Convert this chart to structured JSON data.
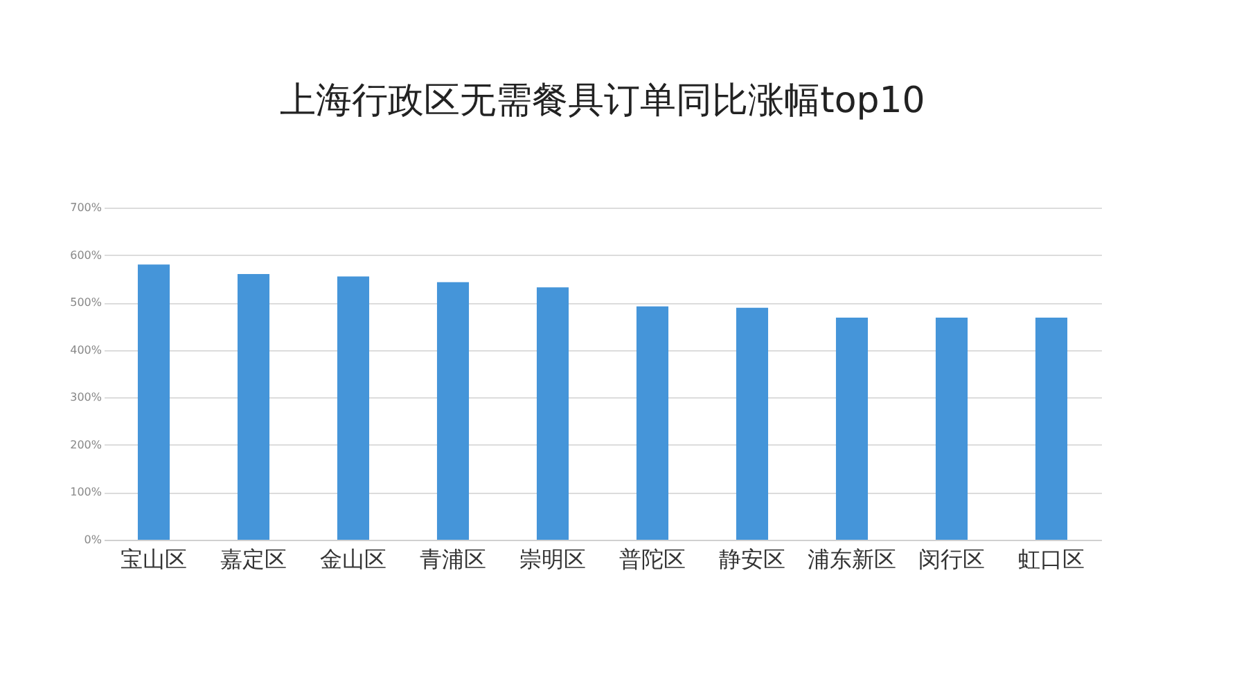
{
  "chart_data": {
    "type": "bar",
    "title": "上海行政区无需餐具订单同比涨幅top10",
    "categories": [
      "宝山区",
      "嘉定区",
      "金山区",
      "青浦区",
      "崇明区",
      "普陀区",
      "静安区",
      "浦东新区",
      "闵行区",
      "虹口区"
    ],
    "values": [
      580,
      560,
      555,
      543,
      532,
      492,
      489,
      468,
      468,
      468
    ],
    "color": "#4595d9",
    "ylim": [
      0,
      700
    ],
    "yticks": [
      {
        "value": 0,
        "label": "0%"
      },
      {
        "value": 100,
        "label": "100%"
      },
      {
        "value": 200,
        "label": "200%"
      },
      {
        "value": 300,
        "label": "300%"
      },
      {
        "value": 400,
        "label": "400%"
      },
      {
        "value": 500,
        "label": "500%"
      },
      {
        "value": 600,
        "label": "600%"
      },
      {
        "value": 700,
        "label": "700%"
      }
    ],
    "grid": "y"
  }
}
